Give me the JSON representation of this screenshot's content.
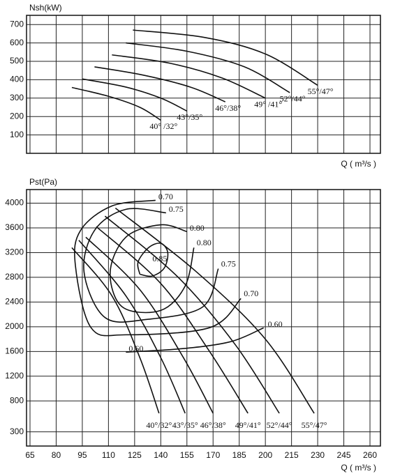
{
  "chart_data": [
    {
      "type": "line",
      "y_label": "Nsh(kW)",
      "x_label": "Q ( m³/s )",
      "xlim": [
        63,
        266
      ],
      "ylim": [
        0,
        750
      ],
      "xticks": [
        65,
        80,
        95,
        110,
        125,
        140,
        155,
        170,
        185,
        200,
        215,
        230,
        245,
        260
      ],
      "show_xtick_labels": false,
      "yticks": [
        100,
        200,
        300,
        400,
        500,
        600,
        700
      ],
      "grid": true,
      "color": "#111111",
      "series": [
        {
          "name": "40° /32°",
          "x": [
            89,
            110,
            128,
            140
          ],
          "values": [
            358,
            310,
            250,
            180
          ]
        },
        {
          "name": "43°/35°",
          "x": [
            95,
            120,
            140,
            155
          ],
          "values": [
            404,
            360,
            300,
            230
          ]
        },
        {
          "name": "46°/38°",
          "x": [
            102,
            130,
            157,
            177
          ],
          "values": [
            470,
            425,
            360,
            280
          ]
        },
        {
          "name": "49° /41°",
          "x": [
            112,
            145,
            175,
            200
          ],
          "values": [
            535,
            490,
            410,
            300
          ]
        },
        {
          "name": "52°/44°",
          "x": [
            120,
            155,
            188,
            214
          ],
          "values": [
            600,
            555,
            470,
            330
          ]
        },
        {
          "name": "55°/47°",
          "x": [
            124,
            165,
            200,
            230
          ],
          "values": [
            670,
            630,
            540,
            370
          ]
        }
      ]
    },
    {
      "type": "line",
      "y_label": "Pst(Pa)",
      "x_label": "Q ( m³/s )",
      "xlim": [
        63,
        266
      ],
      "ylim": [
        70,
        4220
      ],
      "xticks": [
        65,
        80,
        95,
        110,
        125,
        140,
        155,
        170,
        185,
        200,
        215,
        230,
        245,
        260
      ],
      "show_xtick_labels": true,
      "yticks": [
        300,
        800,
        1200,
        1600,
        2000,
        2400,
        2800,
        3200,
        3600,
        4000
      ],
      "grid": true,
      "color": "#111111",
      "series": [
        {
          "name": "40°/32°",
          "x": [
            89,
            112,
            128,
            139
          ],
          "values": [
            3280,
            2500,
            1500,
            600
          ]
        },
        {
          "name": "43°/35°",
          "x": [
            93,
            120,
            140,
            154
          ],
          "values": [
            3400,
            2500,
            1500,
            600
          ]
        },
        {
          "name": "46°/38°",
          "x": [
            97,
            128,
            153,
            170
          ],
          "values": [
            3450,
            2600,
            1500,
            600
          ]
        },
        {
          "name": "49°/41°",
          "x": [
            103,
            140,
            168,
            190
          ],
          "values": [
            3620,
            2700,
            1600,
            600
          ]
        },
        {
          "name": "52°/44°",
          "x": [
            108,
            150,
            183,
            208
          ],
          "values": [
            3790,
            2800,
            1700,
            600
          ]
        },
        {
          "name": "55°/47°",
          "x": [
            114,
            160,
            200,
            228
          ],
          "values": [
            3920,
            2900,
            1800,
            600
          ]
        }
      ],
      "contours": [
        {
          "name": "0.85",
          "closed": true,
          "x": [
            128,
            127,
            133,
            140,
            144,
            142,
            135,
            128
          ],
          "values": [
            2850,
            3050,
            3280,
            3350,
            3200,
            2950,
            2820,
            2850
          ]
        },
        {
          "name": "0.80",
          "closed": false,
          "x": [
            155,
            140,
            120,
            111,
            118,
            140,
            154,
            159
          ],
          "values": [
            3539,
            3650,
            3450,
            2885,
            2320,
            2265,
            2660,
            3280
          ]
        },
        {
          "name": "0.75",
          "closed": false,
          "x": [
            143,
            120,
            102,
            96,
            108,
            132,
            164,
            173
          ],
          "values": [
            3843,
            3900,
            3560,
            2885,
            2150,
            2119,
            2320,
            2940
          ]
        },
        {
          "name": "0.70",
          "closed": false,
          "x": [
            137,
            112,
            94,
            91,
            100,
            120,
            168,
            186
          ],
          "values": [
            4046,
            3955,
            3560,
            3000,
            1985,
            1870,
            1985,
            2457
          ]
        },
        {
          "name": "0.60",
          "closed": false,
          "x": [
            120,
            152,
            180,
            199
          ],
          "values": [
            1590,
            1645,
            1758,
            1983
          ]
        }
      ]
    }
  ]
}
